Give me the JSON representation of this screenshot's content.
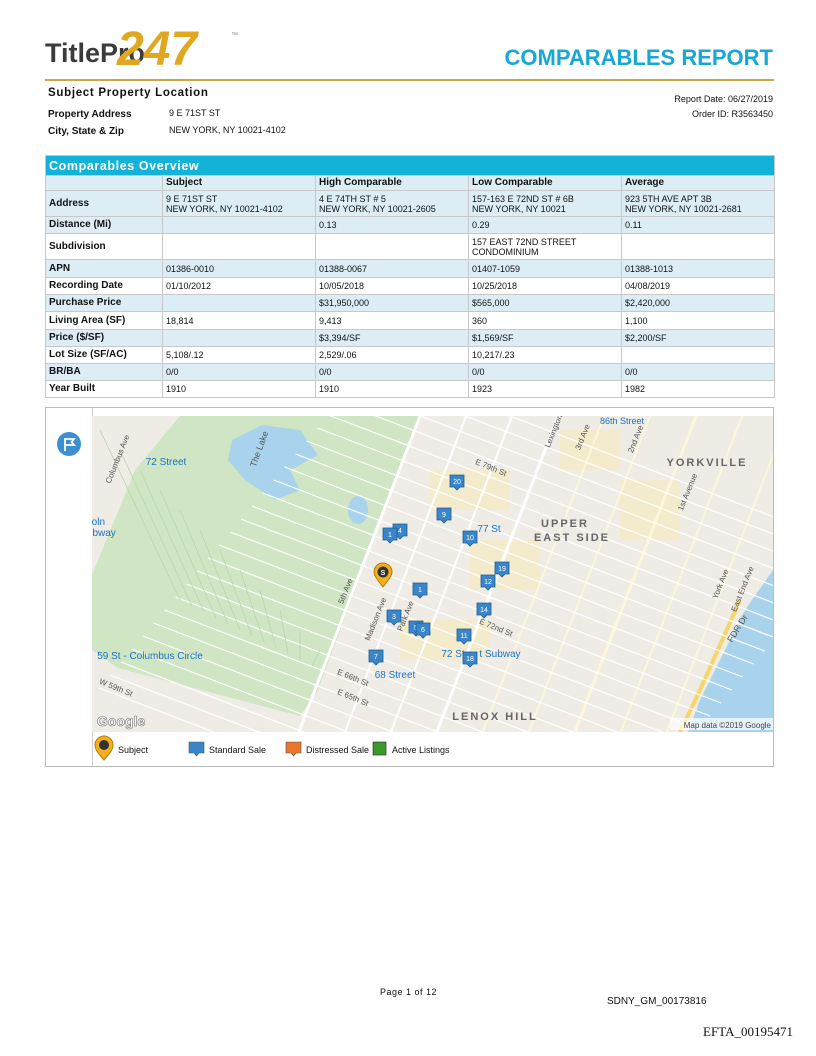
{
  "header": {
    "logo_text": "TitlePro",
    "logo_number": "247",
    "logo_tm": "™",
    "title": "COMPARABLES REPORT"
  },
  "subject": {
    "heading": "Subject Property Location",
    "fields": [
      {
        "label": "Property Address",
        "value": "9 E 71ST ST"
      },
      {
        "label": "City, State & Zip",
        "value": "NEW YORK, NY 10021-4102"
      }
    ],
    "report_date": "Report Date: 06/27/2019",
    "order_id": "Order ID: R3563450"
  },
  "table": {
    "title": "Comparables Overview",
    "columns": [
      "Subject",
      "High Comparable",
      "Low Comparable",
      "Average"
    ],
    "rows": [
      {
        "label": "Address",
        "cells": [
          [
            "9 E 71ST ST",
            "NEW YORK, NY 10021-4102"
          ],
          [
            "4 E 74TH ST # 5",
            "NEW YORK, NY 10021-2605"
          ],
          [
            "157-163 E 72ND ST # 6B",
            "NEW YORK, NY 10021"
          ],
          [
            "923 5TH AVE APT 3B",
            "NEW YORK, NY 10021-2681"
          ]
        ]
      },
      {
        "label": "Distance (Mi)",
        "cells": [
          null,
          "0.13",
          "0.29",
          "0.11"
        ]
      },
      {
        "label": "Subdivision",
        "cells": [
          null,
          null,
          [
            "157 EAST 72ND STREET",
            "CONDOMINIUM"
          ],
          null
        ]
      },
      {
        "label": "APN",
        "cells": [
          "01386-0010",
          "01388-0067",
          "01407-1059",
          "01388-1013"
        ]
      },
      {
        "label": "Recording Date",
        "cells": [
          "01/10/2012",
          "10/05/2018",
          "10/25/2018",
          "04/08/2019"
        ]
      },
      {
        "label": "Purchase Price",
        "cells": [
          null,
          "$31,950,000",
          "$565,000",
          "$2,420,000"
        ]
      },
      {
        "label": "Living Area (SF)",
        "cells": [
          "18,814",
          "9,413",
          "360",
          "1,100"
        ]
      },
      {
        "label": "Price ($/SF)",
        "cells": [
          null,
          "$3,394/SF",
          "$1,569/SF",
          "$2,200/SF"
        ]
      },
      {
        "label": "Lot Size (SF/AC)",
        "cells": [
          "5,108/.12",
          "2,529/.06",
          "10,217/.23",
          null
        ]
      },
      {
        "label": "BR/BA",
        "cells": [
          "0/0",
          "0/0",
          "0/0",
          "0/0"
        ]
      },
      {
        "label": "Year Built",
        "cells": [
          "1910",
          "1910",
          "1923",
          "1982"
        ]
      }
    ]
  },
  "map": {
    "labels": [
      "86th Street",
      "72 Street",
      "YORKVILLE",
      "St - Lincoln",
      "nter Subway",
      "77 St",
      "UPPER",
      "EAST SIDE",
      "59 St - Columbus Circle",
      "72 St",
      "t Subway",
      "68 Street",
      "LENOX HILL",
      "FDR Dr",
      "The Lake",
      "5th Ave",
      "Madison Ave",
      "Park Ave",
      "Lexington",
      "3rd Ave",
      "2nd Ave",
      "1st Avenue",
      "York Ave",
      "East End Ave",
      "E 79th St",
      "E 72nd St",
      "E 66th St",
      "E 65th St",
      "W 59th St",
      "Columbus Ave"
    ],
    "markers": [
      "20",
      "9",
      "4",
      "1",
      "10",
      "19",
      "12",
      "1",
      "14",
      "3",
      "5",
      "6",
      "11",
      "18",
      "7"
    ],
    "subject_marker": "S",
    "logo": "Google",
    "attribution": "Map data ©2019 Google",
    "legend": [
      "Subject",
      "Standard Sale",
      "Distressed Sale",
      "Active Listings"
    ]
  },
  "footer": {
    "page": "Page 1 of 12",
    "doc_id": "SDNY_GM_00173816",
    "efta": "EFTA_00195471"
  }
}
